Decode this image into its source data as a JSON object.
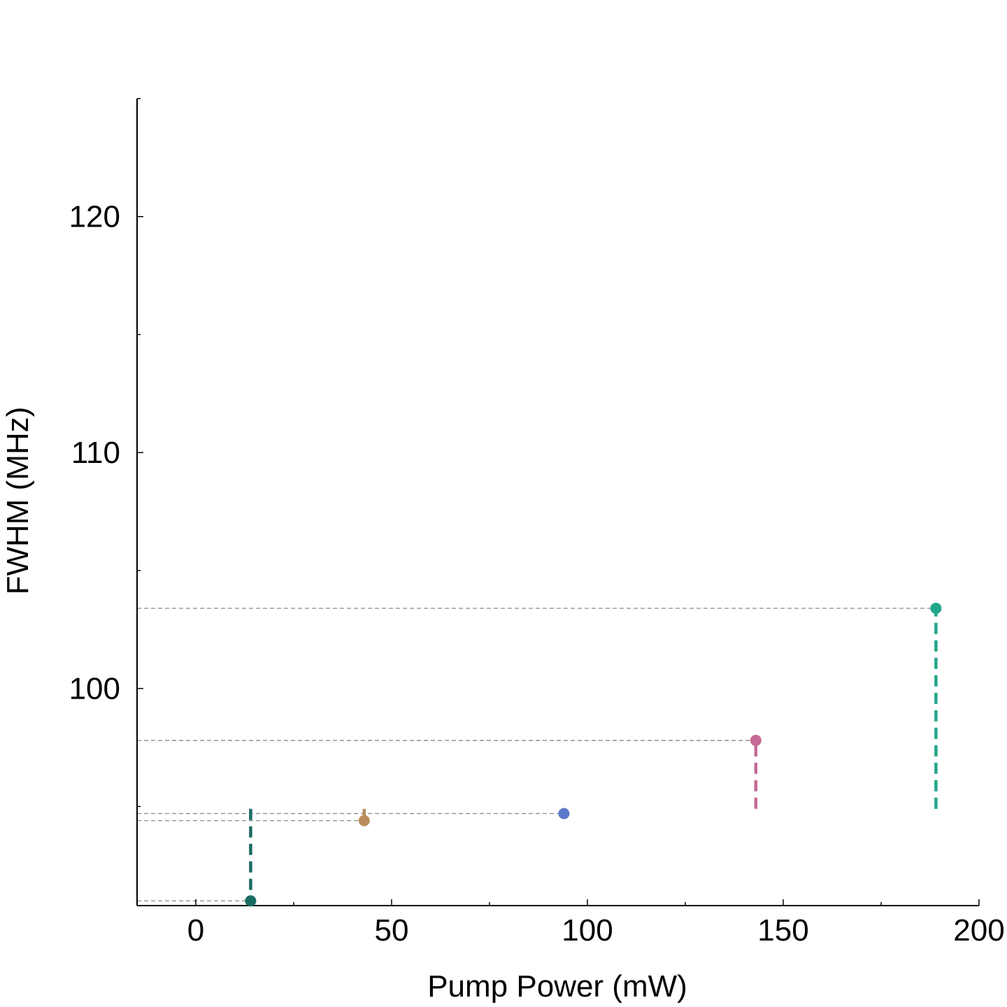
{
  "chart_data": {
    "type": "scatter",
    "title": "",
    "xlabel": "Pump Power (mW)",
    "ylabel": "FWHM (MHz)",
    "xlim": [
      -15,
      200
    ],
    "ylim": [
      90.8,
      125
    ],
    "xticks": [
      0,
      50,
      100,
      150,
      200
    ],
    "xtick_labels": [
      "0",
      "50",
      "100",
      "150",
      "200"
    ],
    "xminor": [
      25,
      75,
      125,
      175
    ],
    "yticks": [
      100,
      110,
      120
    ],
    "ytick_labels": [
      "100",
      "110",
      "120"
    ],
    "yminor": [
      95,
      105,
      115,
      125
    ],
    "stem_base": 94.9,
    "grid": false,
    "legend": "none",
    "points": [
      {
        "x": 14,
        "y": 91.0,
        "color": "#1a6b63"
      },
      {
        "x": 43,
        "y": 94.4,
        "color": "#b98c5c"
      },
      {
        "x": 94,
        "y": 94.7,
        "color": "#5b79c9"
      },
      {
        "x": 143,
        "y": 97.8,
        "color": "#c56a94"
      },
      {
        "x": 189,
        "y": 103.4,
        "color": "#22a68a"
      }
    ]
  }
}
